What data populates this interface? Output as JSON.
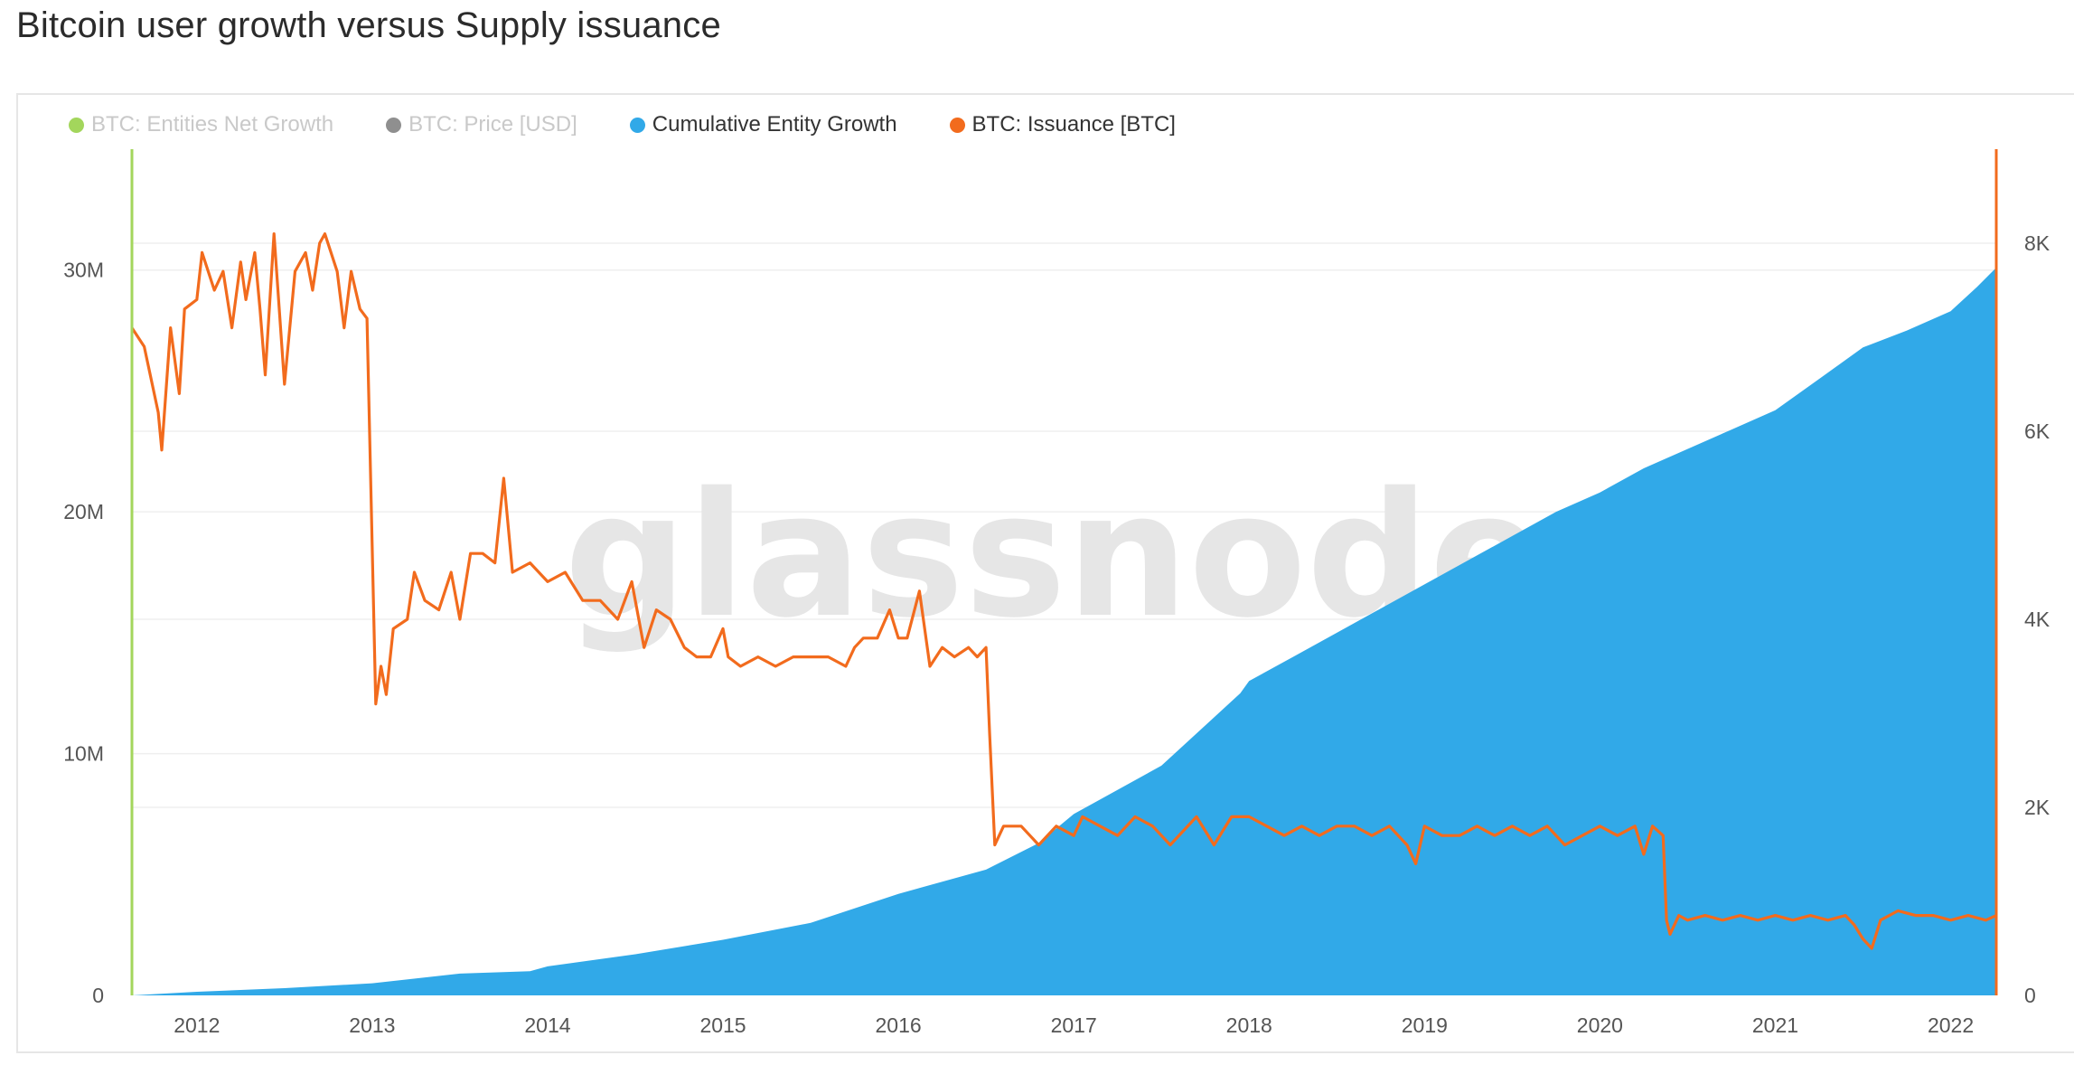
{
  "title": "Bitcoin user growth versus Supply issuance",
  "watermark": "glassnode",
  "colors": {
    "entities_net_growth": "#a3d65c",
    "price": "#8f8f8f",
    "cumulative": "#31a9e8",
    "issuance": "#f26b1d",
    "grid": "#efefef",
    "axis_text": "#555555"
  },
  "legend": [
    {
      "label": "BTC: Entities Net Growth",
      "color": "#a3d65c",
      "enabled": false
    },
    {
      "label": "BTC: Price [USD]",
      "color": "#8f8f8f",
      "enabled": false
    },
    {
      "label": "Cumulative Entity Growth",
      "color": "#31a9e8",
      "enabled": true
    },
    {
      "label": "BTC: Issuance [BTC]",
      "color": "#f26b1d",
      "enabled": true
    }
  ],
  "chart_data": {
    "type": "area",
    "x_ticks": [
      "2012",
      "2013",
      "2014",
      "2015",
      "2016",
      "2017",
      "2018",
      "2019",
      "2020",
      "2021",
      "2022"
    ],
    "xlim": [
      2011.63,
      2022.26
    ],
    "y_left": {
      "ticks": [
        "0",
        "10M",
        "20M",
        "30M"
      ],
      "tick_values": [
        0,
        10000000,
        20000000,
        30000000
      ],
      "lim": [
        0,
        35000000
      ]
    },
    "y_right": {
      "ticks": [
        "0",
        "2K",
        "4K",
        "6K",
        "8K"
      ],
      "tick_values": [
        0,
        2000,
        4000,
        6000,
        8000
      ],
      "lim": [
        0,
        9000
      ]
    },
    "series": [
      {
        "name": "Cumulative Entity Growth",
        "axis": "left",
        "kind": "area",
        "points": [
          [
            2011.63,
            0
          ],
          [
            2012.0,
            150000
          ],
          [
            2012.5,
            300000
          ],
          [
            2013.0,
            500000
          ],
          [
            2013.25,
            700000
          ],
          [
            2013.5,
            900000
          ],
          [
            2013.9,
            1000000
          ],
          [
            2014.0,
            1200000
          ],
          [
            2014.5,
            1700000
          ],
          [
            2015.0,
            2300000
          ],
          [
            2015.5,
            3000000
          ],
          [
            2015.75,
            3600000
          ],
          [
            2016.0,
            4200000
          ],
          [
            2016.5,
            5200000
          ],
          [
            2016.8,
            6300000
          ],
          [
            2017.0,
            7500000
          ],
          [
            2017.5,
            9500000
          ],
          [
            2017.8,
            11500000
          ],
          [
            2017.95,
            12500000
          ],
          [
            2018.0,
            13000000
          ],
          [
            2018.25,
            14000000
          ],
          [
            2018.5,
            15000000
          ],
          [
            2018.75,
            16000000
          ],
          [
            2019.0,
            17000000
          ],
          [
            2019.25,
            18000000
          ],
          [
            2019.5,
            19000000
          ],
          [
            2019.75,
            20000000
          ],
          [
            2020.0,
            20800000
          ],
          [
            2020.25,
            21800000
          ],
          [
            2020.5,
            22600000
          ],
          [
            2020.75,
            23400000
          ],
          [
            2021.0,
            24200000
          ],
          [
            2021.25,
            25500000
          ],
          [
            2021.5,
            26800000
          ],
          [
            2021.75,
            27500000
          ],
          [
            2022.0,
            28300000
          ],
          [
            2022.15,
            29300000
          ],
          [
            2022.26,
            30100000
          ]
        ]
      },
      {
        "name": "BTC: Issuance [BTC]",
        "axis": "right",
        "kind": "line",
        "points": [
          [
            2011.63,
            7100
          ],
          [
            2011.7,
            6900
          ],
          [
            2011.78,
            6200
          ],
          [
            2011.8,
            5800
          ],
          [
            2011.85,
            7100
          ],
          [
            2011.9,
            6400
          ],
          [
            2011.93,
            7300
          ],
          [
            2012.0,
            7400
          ],
          [
            2012.03,
            7900
          ],
          [
            2012.1,
            7500
          ],
          [
            2012.15,
            7700
          ],
          [
            2012.2,
            7100
          ],
          [
            2012.25,
            7800
          ],
          [
            2012.28,
            7400
          ],
          [
            2012.33,
            7900
          ],
          [
            2012.36,
            7300
          ],
          [
            2012.39,
            6600
          ],
          [
            2012.44,
            8100
          ],
          [
            2012.5,
            6500
          ],
          [
            2012.56,
            7700
          ],
          [
            2012.62,
            7900
          ],
          [
            2012.66,
            7500
          ],
          [
            2012.7,
            8000
          ],
          [
            2012.73,
            8100
          ],
          [
            2012.8,
            7700
          ],
          [
            2012.84,
            7100
          ],
          [
            2012.88,
            7700
          ],
          [
            2012.93,
            7300
          ],
          [
            2012.97,
            7200
          ],
          [
            2012.99,
            5600
          ],
          [
            2013.02,
            3100
          ],
          [
            2013.05,
            3500
          ],
          [
            2013.08,
            3200
          ],
          [
            2013.12,
            3900
          ],
          [
            2013.2,
            4000
          ],
          [
            2013.24,
            4500
          ],
          [
            2013.3,
            4200
          ],
          [
            2013.38,
            4100
          ],
          [
            2013.45,
            4500
          ],
          [
            2013.5,
            4000
          ],
          [
            2013.56,
            4700
          ],
          [
            2013.63,
            4700
          ],
          [
            2013.7,
            4600
          ],
          [
            2013.75,
            5500
          ],
          [
            2013.8,
            4500
          ],
          [
            2013.9,
            4600
          ],
          [
            2014.0,
            4400
          ],
          [
            2014.1,
            4500
          ],
          [
            2014.2,
            4200
          ],
          [
            2014.3,
            4200
          ],
          [
            2014.4,
            4000
          ],
          [
            2014.48,
            4400
          ],
          [
            2014.55,
            3700
          ],
          [
            2014.62,
            4100
          ],
          [
            2014.7,
            4000
          ],
          [
            2014.78,
            3700
          ],
          [
            2014.85,
            3600
          ],
          [
            2014.93,
            3600
          ],
          [
            2015.0,
            3900
          ],
          [
            2015.03,
            3600
          ],
          [
            2015.1,
            3500
          ],
          [
            2015.2,
            3600
          ],
          [
            2015.3,
            3500
          ],
          [
            2015.4,
            3600
          ],
          [
            2015.5,
            3600
          ],
          [
            2015.6,
            3600
          ],
          [
            2015.7,
            3500
          ],
          [
            2015.75,
            3700
          ],
          [
            2015.8,
            3800
          ],
          [
            2015.88,
            3800
          ],
          [
            2015.95,
            4100
          ],
          [
            2016.0,
            3800
          ],
          [
            2016.05,
            3800
          ],
          [
            2016.12,
            4300
          ],
          [
            2016.18,
            3500
          ],
          [
            2016.25,
            3700
          ],
          [
            2016.32,
            3600
          ],
          [
            2016.4,
            3700
          ],
          [
            2016.45,
            3600
          ],
          [
            2016.5,
            3700
          ],
          [
            2016.52,
            2800
          ],
          [
            2016.55,
            1600
          ],
          [
            2016.6,
            1800
          ],
          [
            2016.7,
            1800
          ],
          [
            2016.8,
            1600
          ],
          [
            2016.9,
            1800
          ],
          [
            2017.0,
            1700
          ],
          [
            2017.05,
            1900
          ],
          [
            2017.15,
            1800
          ],
          [
            2017.25,
            1700
          ],
          [
            2017.35,
            1900
          ],
          [
            2017.45,
            1800
          ],
          [
            2017.55,
            1600
          ],
          [
            2017.7,
            1900
          ],
          [
            2017.8,
            1600
          ],
          [
            2017.9,
            1900
          ],
          [
            2018.0,
            1900
          ],
          [
            2018.1,
            1800
          ],
          [
            2018.2,
            1700
          ],
          [
            2018.3,
            1800
          ],
          [
            2018.4,
            1700
          ],
          [
            2018.5,
            1800
          ],
          [
            2018.6,
            1800
          ],
          [
            2018.7,
            1700
          ],
          [
            2018.8,
            1800
          ],
          [
            2018.9,
            1600
          ],
          [
            2018.95,
            1400
          ],
          [
            2019.0,
            1800
          ],
          [
            2019.1,
            1700
          ],
          [
            2019.2,
            1700
          ],
          [
            2019.3,
            1800
          ],
          [
            2019.4,
            1700
          ],
          [
            2019.5,
            1800
          ],
          [
            2019.6,
            1700
          ],
          [
            2019.7,
            1800
          ],
          [
            2019.8,
            1600
          ],
          [
            2019.9,
            1700
          ],
          [
            2020.0,
            1800
          ],
          [
            2020.1,
            1700
          ],
          [
            2020.2,
            1800
          ],
          [
            2020.25,
            1500
          ],
          [
            2020.3,
            1800
          ],
          [
            2020.36,
            1700
          ],
          [
            2020.38,
            800
          ],
          [
            2020.4,
            650
          ],
          [
            2020.45,
            850
          ],
          [
            2020.5,
            800
          ],
          [
            2020.6,
            850
          ],
          [
            2020.7,
            800
          ],
          [
            2020.8,
            850
          ],
          [
            2020.9,
            800
          ],
          [
            2021.0,
            850
          ],
          [
            2021.1,
            800
          ],
          [
            2021.2,
            850
          ],
          [
            2021.3,
            800
          ],
          [
            2021.4,
            850
          ],
          [
            2021.45,
            750
          ],
          [
            2021.5,
            600
          ],
          [
            2021.55,
            500
          ],
          [
            2021.6,
            800
          ],
          [
            2021.7,
            900
          ],
          [
            2021.8,
            850
          ],
          [
            2021.9,
            850
          ],
          [
            2022.0,
            800
          ],
          [
            2022.1,
            850
          ],
          [
            2022.2,
            800
          ],
          [
            2022.26,
            850
          ]
        ]
      }
    ]
  }
}
